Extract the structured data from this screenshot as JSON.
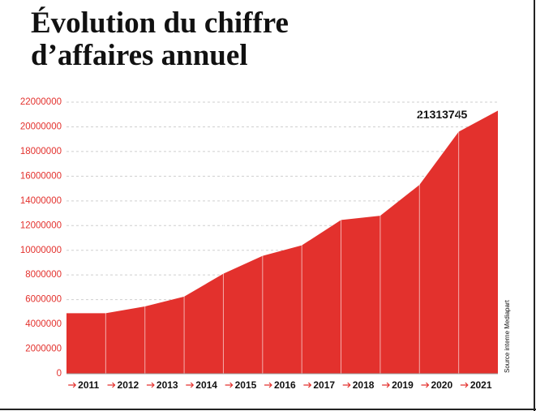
{
  "chart_data": {
    "type": "area",
    "title": [
      "Évolution du chiffre",
      "d’affaires annuel"
    ],
    "categories": [
      "2011",
      "2012",
      "2013",
      "2014",
      "2015",
      "2016",
      "2017",
      "2018",
      "2019",
      "2020",
      "2021"
    ],
    "values": [
      4900000,
      5450000,
      6250000,
      8100000,
      9550000,
      10400000,
      12450000,
      12800000,
      15300000,
      19600000,
      21313745
    ],
    "color": "#e3312d",
    "ylim": [
      0,
      22000000
    ],
    "yticks": [
      0,
      2000000,
      4000000,
      6000000,
      8000000,
      10000000,
      12000000,
      14000000,
      16000000,
      18000000,
      20000000,
      22000000
    ],
    "grid": true,
    "annotation": "21313745",
    "source": "Source interne Mediapart"
  }
}
